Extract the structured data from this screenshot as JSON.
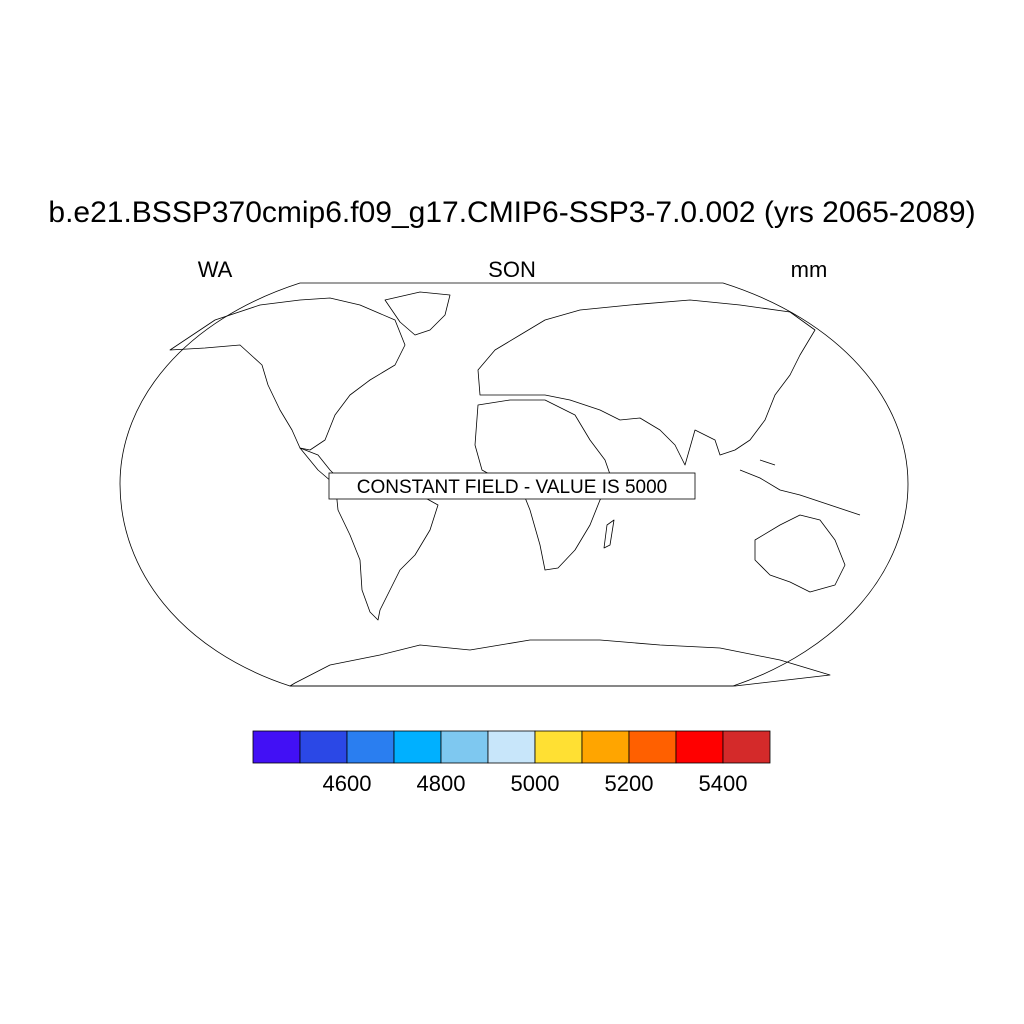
{
  "title": "b.e21.BSSP370cmip6.f09_g17.CMIP6-SSP3-7.0.002 (yrs 2065-2089)",
  "left_label": "WA",
  "center_label": "SON",
  "right_label": "mm",
  "annotation": "CONSTANT FIELD - VALUE IS 5000",
  "colorbar": {
    "levels": [
      4500,
      4600,
      4700,
      4800,
      4900,
      5000,
      5100,
      5200,
      5300,
      5400
    ],
    "colors": [
      "#4210f5",
      "#2b48e6",
      "#2a7ef0",
      "#00b0ff",
      "#7ec8f0",
      "#c8e6fa",
      "#ffe033",
      "#ffa500",
      "#ff6000",
      "#ff0000",
      "#d42a2a"
    ],
    "ticks": [
      4600,
      4800,
      5000,
      5200,
      5400
    ]
  }
}
